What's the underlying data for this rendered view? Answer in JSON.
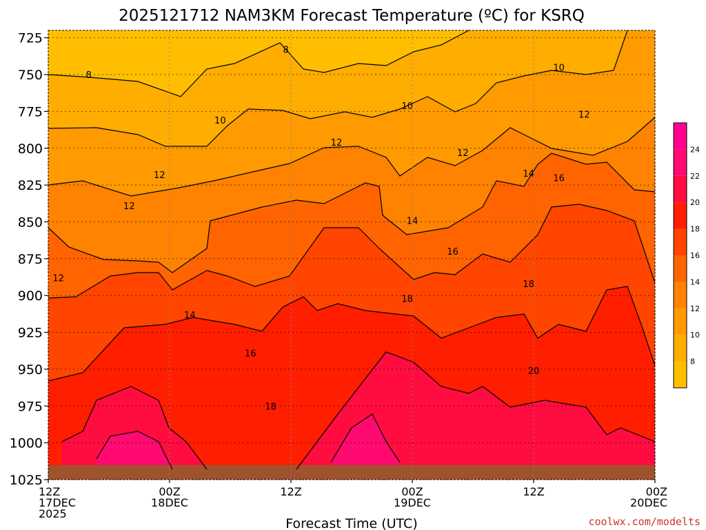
{
  "title": "2025121712 NAM3KM Forecast Temperature (ºC) for KSRQ",
  "watermark": "coolwx.com/modelts",
  "chart_data": {
    "type": "heatmap",
    "title": "2025121712 NAM3KM Forecast Temperature (ºC) for KSRQ",
    "xlabel": "Forecast Time (UTC)",
    "ylabel": "",
    "x_ticks": [
      {
        "hour": 0,
        "l1": "12Z",
        "l2": "17DEC",
        "l3": "2025"
      },
      {
        "hour": 12,
        "l1": "00Z",
        "l2": "18DEC",
        "l3": ""
      },
      {
        "hour": 24,
        "l1": "12Z",
        "l2": "",
        "l3": ""
      },
      {
        "hour": 36,
        "l1": "00Z",
        "l2": "19DEC",
        "l3": ""
      },
      {
        "hour": 48,
        "l1": "12Z",
        "l2": "",
        "l3": ""
      },
      {
        "hour": 60,
        "l1": "00Z",
        "l2": "20DEC",
        "l3": ""
      }
    ],
    "xlim": [
      0,
      60
    ],
    "y_ticks": [
      725,
      750,
      775,
      800,
      825,
      850,
      875,
      900,
      925,
      950,
      975,
      1000,
      1025
    ],
    "ylim": [
      720,
      1025
    ],
    "y_axis_inverted": true,
    "colorbar": {
      "labels": [
        8,
        10,
        12,
        14,
        16,
        18,
        20,
        22,
        24
      ],
      "colors": [
        "#ffbf00",
        "#ffad00",
        "#ff9a00",
        "#ff8200",
        "#ff6400",
        "#ff4500",
        "#ff1e00",
        "#ff0c40",
        "#ff0a70",
        "#ff0090"
      ]
    },
    "contour_labels": [
      {
        "hour": 23.5,
        "p": 733,
        "v": "8"
      },
      {
        "hour": 4,
        "p": 750,
        "v": "8"
      },
      {
        "hour": 50.5,
        "p": 745,
        "v": "10"
      },
      {
        "hour": 35.5,
        "p": 771,
        "v": "10"
      },
      {
        "hour": 17,
        "p": 781,
        "v": "10"
      },
      {
        "hour": 53,
        "p": 777,
        "v": "12"
      },
      {
        "hour": 28.5,
        "p": 796,
        "v": "12"
      },
      {
        "hour": 41,
        "p": 803,
        "v": "12"
      },
      {
        "hour": 11,
        "p": 818,
        "v": "12"
      },
      {
        "hour": 8,
        "p": 839,
        "v": "12"
      },
      {
        "hour": 1,
        "p": 888,
        "v": "12"
      },
      {
        "hour": 47.5,
        "p": 817,
        "v": "14"
      },
      {
        "hour": 36,
        "p": 849,
        "v": "14"
      },
      {
        "hour": 14,
        "p": 913,
        "v": "14"
      },
      {
        "hour": 50.5,
        "p": 820,
        "v": "16"
      },
      {
        "hour": 40,
        "p": 870,
        "v": "16"
      },
      {
        "hour": 20,
        "p": 939,
        "v": "16"
      },
      {
        "hour": 47.5,
        "p": 892,
        "v": "18"
      },
      {
        "hour": 35.5,
        "p": 902,
        "v": "18"
      },
      {
        "hour": 22,
        "p": 975,
        "v": "18"
      },
      {
        "hour": 48,
        "p": 951,
        "v": "20"
      }
    ]
  }
}
